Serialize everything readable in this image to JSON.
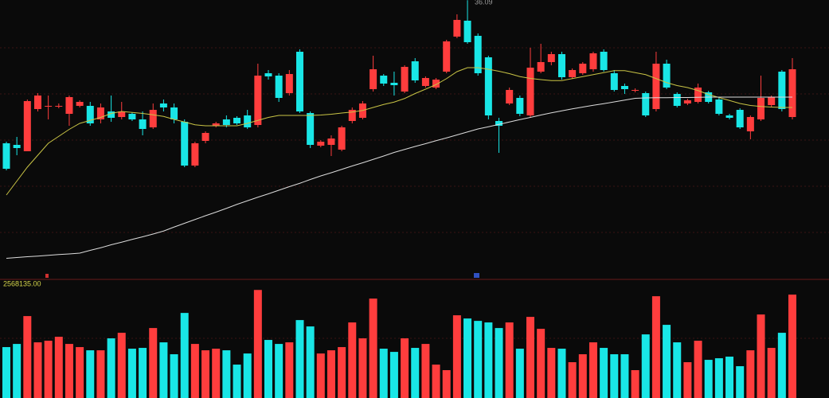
{
  "chart_data": [
    {
      "type": "candlestick",
      "up_color": "#ff3d3d",
      "down_color": "#19e6e6",
      "ylim": [
        22.1,
        36.1
      ],
      "open": [
        28.9,
        28.82,
        28.5,
        30.62,
        30.74,
        30.74,
        30.38,
        30.78,
        30.78,
        30.1,
        30.5,
        30.22,
        30.38,
        30.1,
        29.7,
        30.9,
        30.7,
        29.98,
        27.78,
        29.02,
        29.78,
        30.1,
        30.18,
        30.3,
        29.82,
        32.42,
        32.3,
        31.42,
        33.5,
        30.42,
        28.78,
        28.82,
        28.58,
        30.02,
        30.18,
        31.62,
        32.3,
        31.94,
        31.5,
        33.02,
        31.78,
        31.7,
        32.5,
        34.26,
        35.06,
        34.3,
        33.22,
        30.02,
        30.9,
        31.18,
        30.3,
        32.5,
        32.98,
        33.38,
        32.22,
        32.42,
        32.62,
        33.5,
        32.42,
        31.78,
        31.54,
        31.42,
        30.62,
        32.9,
        31.38,
        30.9,
        30.98,
        31.46,
        31.1,
        30.3,
        30.58,
        29.5,
        30.1,
        30.82,
        32.5,
        30.22
      ],
      "high": [
        28.98,
        29.22,
        31.1,
        31.42,
        31.3,
        30.9,
        31.3,
        31.06,
        30.98,
        30.9,
        31.3,
        30.98,
        30.46,
        30.5,
        30.9,
        31.1,
        30.9,
        30.1,
        28.98,
        29.5,
        29.98,
        30.3,
        30.26,
        30.58,
        32.9,
        32.58,
        32.42,
        32.58,
        33.62,
        30.5,
        29.06,
        29.3,
        29.78,
        30.7,
        31.02,
        33.3,
        32.38,
        32.5,
        32.82,
        33.18,
        32.26,
        32.18,
        34.1,
        35.38,
        36.09,
        34.42,
        33.3,
        30.18,
        31.7,
        31.3,
        33.7,
        33.9,
        33.5,
        33.5,
        32.66,
        32.98,
        33.5,
        33.62,
        32.58,
        31.9,
        31.66,
        31.5,
        33.5,
        33.1,
        31.46,
        31.14,
        31.9,
        31.54,
        31.18,
        30.38,
        30.66,
        30.3,
        32.3,
        31.3,
        32.58,
        33.18
      ],
      "low": [
        27.54,
        28.3,
        28.5,
        30.5,
        30.1,
        30.66,
        29.78,
        30.7,
        29.78,
        29.9,
        29.98,
        30.1,
        30.02,
        29.3,
        29.62,
        30.5,
        29.9,
        27.7,
        27.7,
        28.9,
        29.7,
        29.7,
        29.82,
        29.62,
        29.7,
        32.1,
        30.98,
        31.3,
        30.42,
        28.66,
        28.7,
        28.26,
        28.5,
        29.9,
        30.1,
        31.5,
        31.78,
        31.3,
        31.42,
        31.94,
        31.7,
        31.62,
        32.42,
        34.18,
        33.9,
        32.3,
        30.1,
        28.42,
        30.82,
        30.26,
        30.18,
        32.42,
        32.82,
        32.1,
        32.14,
        32.34,
        32.5,
        32.5,
        31.5,
        31.38,
        31.46,
        30.22,
        30.5,
        31.62,
        30.7,
        30.82,
        30.9,
        30.9,
        30.3,
        30.1,
        29.62,
        29.1,
        30.02,
        30.74,
        30.5,
        30.1
      ],
      "close": [
        27.62,
        28.66,
        31.02,
        31.3,
        30.78,
        30.78,
        31.22,
        30.98,
        29.9,
        30.7,
        30.18,
        30.5,
        30.1,
        29.62,
        30.58,
        30.7,
        30.1,
        27.78,
        28.9,
        29.42,
        29.9,
        29.82,
        29.9,
        29.7,
        32.3,
        32.26,
        31.18,
        32.38,
        30.5,
        28.82,
        28.98,
        29.14,
        29.7,
        30.58,
        30.9,
        32.62,
        31.9,
        31.82,
        32.74,
        32.06,
        32.18,
        32.1,
        34.02,
        35.1,
        33.98,
        32.42,
        30.3,
        29.78,
        31.58,
        30.38,
        32.7,
        32.98,
        33.38,
        32.22,
        32.58,
        32.9,
        33.42,
        32.58,
        31.58,
        31.62,
        31.58,
        30.3,
        32.9,
        31.7,
        30.78,
        31.06,
        31.7,
        30.98,
        30.38,
        30.18,
        29.7,
        30.22,
        31.18,
        31.22,
        30.62,
        32.62
      ],
      "series": [
        {
          "color": "#c9c445",
          "values": [
            26.3,
            27.0,
            27.7,
            28.3,
            28.9,
            29.25,
            29.6,
            29.9,
            30.05,
            30.2,
            30.4,
            30.5,
            30.45,
            30.4,
            30.33,
            30.25,
            30.1,
            29.97,
            29.83,
            29.78,
            29.78,
            29.78,
            29.78,
            29.9,
            30.05,
            30.2,
            30.3,
            30.3,
            30.3,
            30.3,
            30.32,
            30.36,
            30.42,
            30.47,
            30.55,
            30.7,
            30.85,
            30.97,
            31.15,
            31.4,
            31.62,
            31.85,
            32.15,
            32.5,
            32.7,
            32.7,
            32.62,
            32.52,
            32.4,
            32.25,
            32.16,
            32.1,
            32.05,
            32.05,
            32.15,
            32.25,
            32.35,
            32.45,
            32.55,
            32.55,
            32.45,
            32.35,
            32.15,
            31.95,
            31.8,
            31.7,
            31.55,
            31.35,
            31.2,
            31.05,
            30.9,
            30.8,
            30.75,
            30.72,
            30.7,
            30.7
          ]
        },
        {
          "color": "#dcdcdc",
          "values": [
            23.12,
            23.16,
            23.2,
            23.23,
            23.27,
            23.31,
            23.34,
            23.38,
            23.52,
            23.65,
            23.8,
            23.93,
            24.07,
            24.2,
            24.34,
            24.49,
            24.69,
            24.88,
            25.07,
            25.26,
            25.44,
            25.63,
            25.83,
            26.01,
            26.19,
            26.36,
            26.54,
            26.72,
            26.89,
            27.08,
            27.26,
            27.42,
            27.59,
            27.76,
            27.92,
            28.09,
            28.26,
            28.44,
            28.59,
            28.74,
            28.88,
            29.03,
            29.17,
            29.32,
            29.47,
            29.62,
            29.73,
            29.85,
            29.97,
            30.09,
            30.2,
            30.32,
            30.43,
            30.53,
            30.63,
            30.72,
            30.81,
            30.89,
            30.98,
            31.07,
            31.16,
            31.18,
            31.19,
            31.19,
            31.2,
            31.2,
            31.21,
            31.22,
            31.22,
            31.22,
            31.22,
            31.22,
            31.22,
            31.22,
            31.22,
            31.22
          ]
        }
      ]
    },
    {
      "type": "bar",
      "label": "2568135.00",
      "label_color": "#d4d44a",
      "ylim": [
        0,
        2800000
      ],
      "values": [
        1210000,
        1285000,
        1947000,
        1323000,
        1361000,
        1455000,
        1285000,
        1210000,
        1134000,
        1134000,
        1418000,
        1550000,
        1172000,
        1191000,
        1663000,
        1323000,
        1040000,
        2022000,
        1285000,
        1134000,
        1172000,
        1134000,
        794000,
        1058000,
        2568135,
        1380000,
        1285000,
        1323000,
        1852000,
        1701000,
        1058000,
        1134000,
        1210000,
        1796000,
        1418000,
        2363000,
        1172000,
        1096000,
        1418000,
        1191000,
        1285000,
        794000,
        662000,
        1966000,
        1890000,
        1833000,
        1796000,
        1663000,
        1796000,
        1172000,
        1928000,
        1644000,
        1191000,
        1172000,
        851000,
        1040000,
        1323000,
        1191000,
        1040000,
        1040000,
        662000,
        1512000,
        2419000,
        1739000,
        1323000,
        851000,
        1361000,
        907000,
        945000,
        983000,
        756000,
        1134000,
        1985000,
        1191000,
        1550000,
        2457000
      ]
    }
  ]
}
